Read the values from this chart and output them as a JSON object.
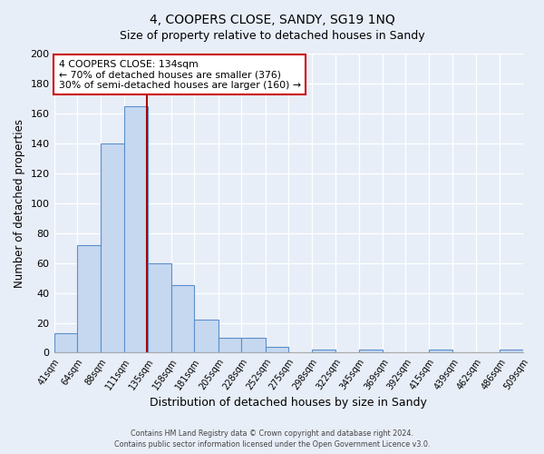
{
  "title": "4, COOPERS CLOSE, SANDY, SG19 1NQ",
  "subtitle": "Size of property relative to detached houses in Sandy",
  "xlabel": "Distribution of detached houses by size in Sandy",
  "ylabel": "Number of detached properties",
  "bin_labels": [
    "41sqm",
    "64sqm",
    "88sqm",
    "111sqm",
    "135sqm",
    "158sqm",
    "181sqm",
    "205sqm",
    "228sqm",
    "252sqm",
    "275sqm",
    "298sqm",
    "322sqm",
    "345sqm",
    "369sqm",
    "392sqm",
    "415sqm",
    "439sqm",
    "462sqm",
    "486sqm",
    "509sqm"
  ],
  "bin_edges": [
    41,
    64,
    88,
    111,
    135,
    158,
    181,
    205,
    228,
    252,
    275,
    298,
    322,
    345,
    369,
    392,
    415,
    439,
    462,
    486,
    509
  ],
  "bar_heights": [
    13,
    72,
    140,
    165,
    60,
    45,
    22,
    10,
    10,
    4,
    0,
    2,
    0,
    2,
    0,
    0,
    2,
    0,
    0,
    2
  ],
  "bar_color": "#c5d8f0",
  "bar_edge_color": "#5b8fcc",
  "vline_x": 134,
  "vline_color": "#aa0000",
  "annotation_title": "4 COOPERS CLOSE: 134sqm",
  "annotation_line1": "← 70% of detached houses are smaller (376)",
  "annotation_line2": "30% of semi-detached houses are larger (160) →",
  "annotation_box_color": "#ffffff",
  "annotation_box_edge": "#cc0000",
  "ylim": [
    0,
    200
  ],
  "yticks": [
    0,
    20,
    40,
    60,
    80,
    100,
    120,
    140,
    160,
    180,
    200
  ],
  "footer1": "Contains HM Land Registry data © Crown copyright and database right 2024.",
  "footer2": "Contains public sector information licensed under the Open Government Licence v3.0.",
  "bg_color": "#e8eef8",
  "grid_color": "#ffffff"
}
